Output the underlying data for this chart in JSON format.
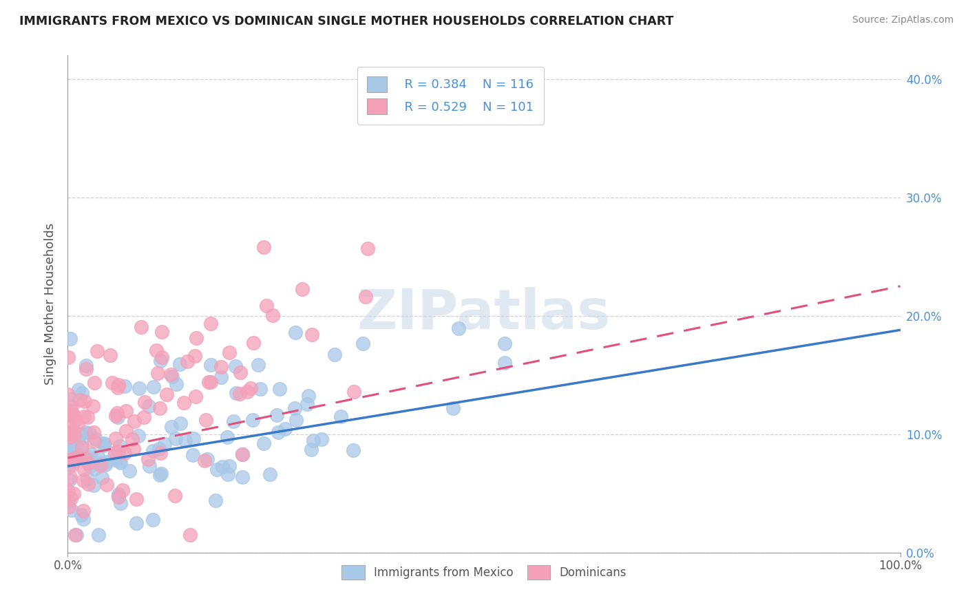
{
  "title": "IMMIGRANTS FROM MEXICO VS DOMINICAN SINGLE MOTHER HOUSEHOLDS CORRELATION CHART",
  "source": "Source: ZipAtlas.com",
  "ylabel": "Single Mother Households",
  "watermark": "ZIPatlas",
  "legend_labels": [
    "Immigrants from Mexico",
    "Dominicans"
  ],
  "R_mexico": 0.384,
  "N_mexico": 116,
  "R_dominican": 0.529,
  "N_dominican": 101,
  "color_mexico": "#a8c8e8",
  "color_dominican": "#f4a0b8",
  "trend_color_mexico": "#3a78c9",
  "trend_color_dominican": "#e0507a",
  "xlim": [
    0.0,
    1.0
  ],
  "ylim": [
    0.0,
    0.42
  ],
  "y_ticks": [
    0.0,
    0.1,
    0.2,
    0.3,
    0.4
  ],
  "background_color": "#ffffff",
  "grid_color": "#cccccc",
  "label_color_blue": "#4a90d9",
  "label_color_dark": "#555555"
}
